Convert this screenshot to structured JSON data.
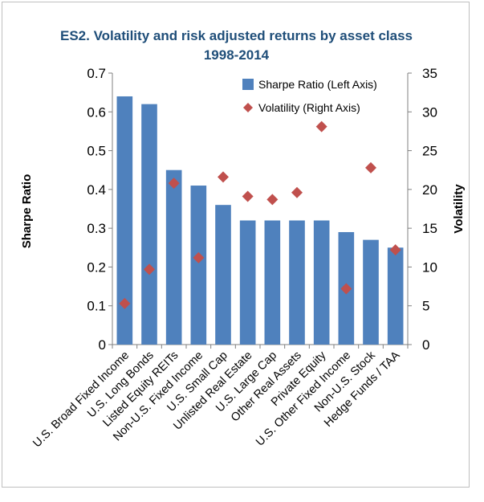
{
  "chart_data": {
    "type": "bar",
    "title": "ES2. Volatility and risk adjusted returns by asset class",
    "subtitle": "1998-2014",
    "ylabel": "Sharpe Ratio",
    "y2label": "Volatility",
    "ylim": [
      0,
      0.7
    ],
    "y2lim": [
      0,
      35
    ],
    "yticks": [
      "0",
      "0.1",
      "0.2",
      "0.3",
      "0.4",
      "0.5",
      "0.6",
      "0.7"
    ],
    "y2ticks": [
      "0",
      "5",
      "10",
      "15",
      "20",
      "25",
      "30",
      "35"
    ],
    "categories": [
      "U.S. Broad Fixed Income",
      "U.S. Long Bonds",
      "Listed Equity REITs",
      "Non-U.S. Fixed Income",
      "U.S. Small Cap",
      "Unlisted Real Estate",
      "U.S. Large Cap",
      "Other Real Assets",
      "Private Equity",
      "U.S. Other Fixed Income",
      "Non-U.S. Stock",
      "Hedge Funds / TAA"
    ],
    "series": [
      {
        "name": "Sharpe Ratio (Left Axis)",
        "type": "bar",
        "axis": "left",
        "color": "#4f81bd",
        "values": [
          0.64,
          0.62,
          0.45,
          0.41,
          0.36,
          0.32,
          0.32,
          0.32,
          0.32,
          0.29,
          0.27,
          0.25
        ]
      },
      {
        "name": "Volatility (Right Axis)",
        "type": "scatter",
        "marker": "diamond",
        "axis": "right",
        "color": "#c0504d",
        "values": [
          5.3,
          9.7,
          20.8,
          11.2,
          21.6,
          19.1,
          18.7,
          19.6,
          28.1,
          7.2,
          22.8,
          12.2
        ]
      }
    ],
    "legend_position": "top-right",
    "grid": false
  }
}
